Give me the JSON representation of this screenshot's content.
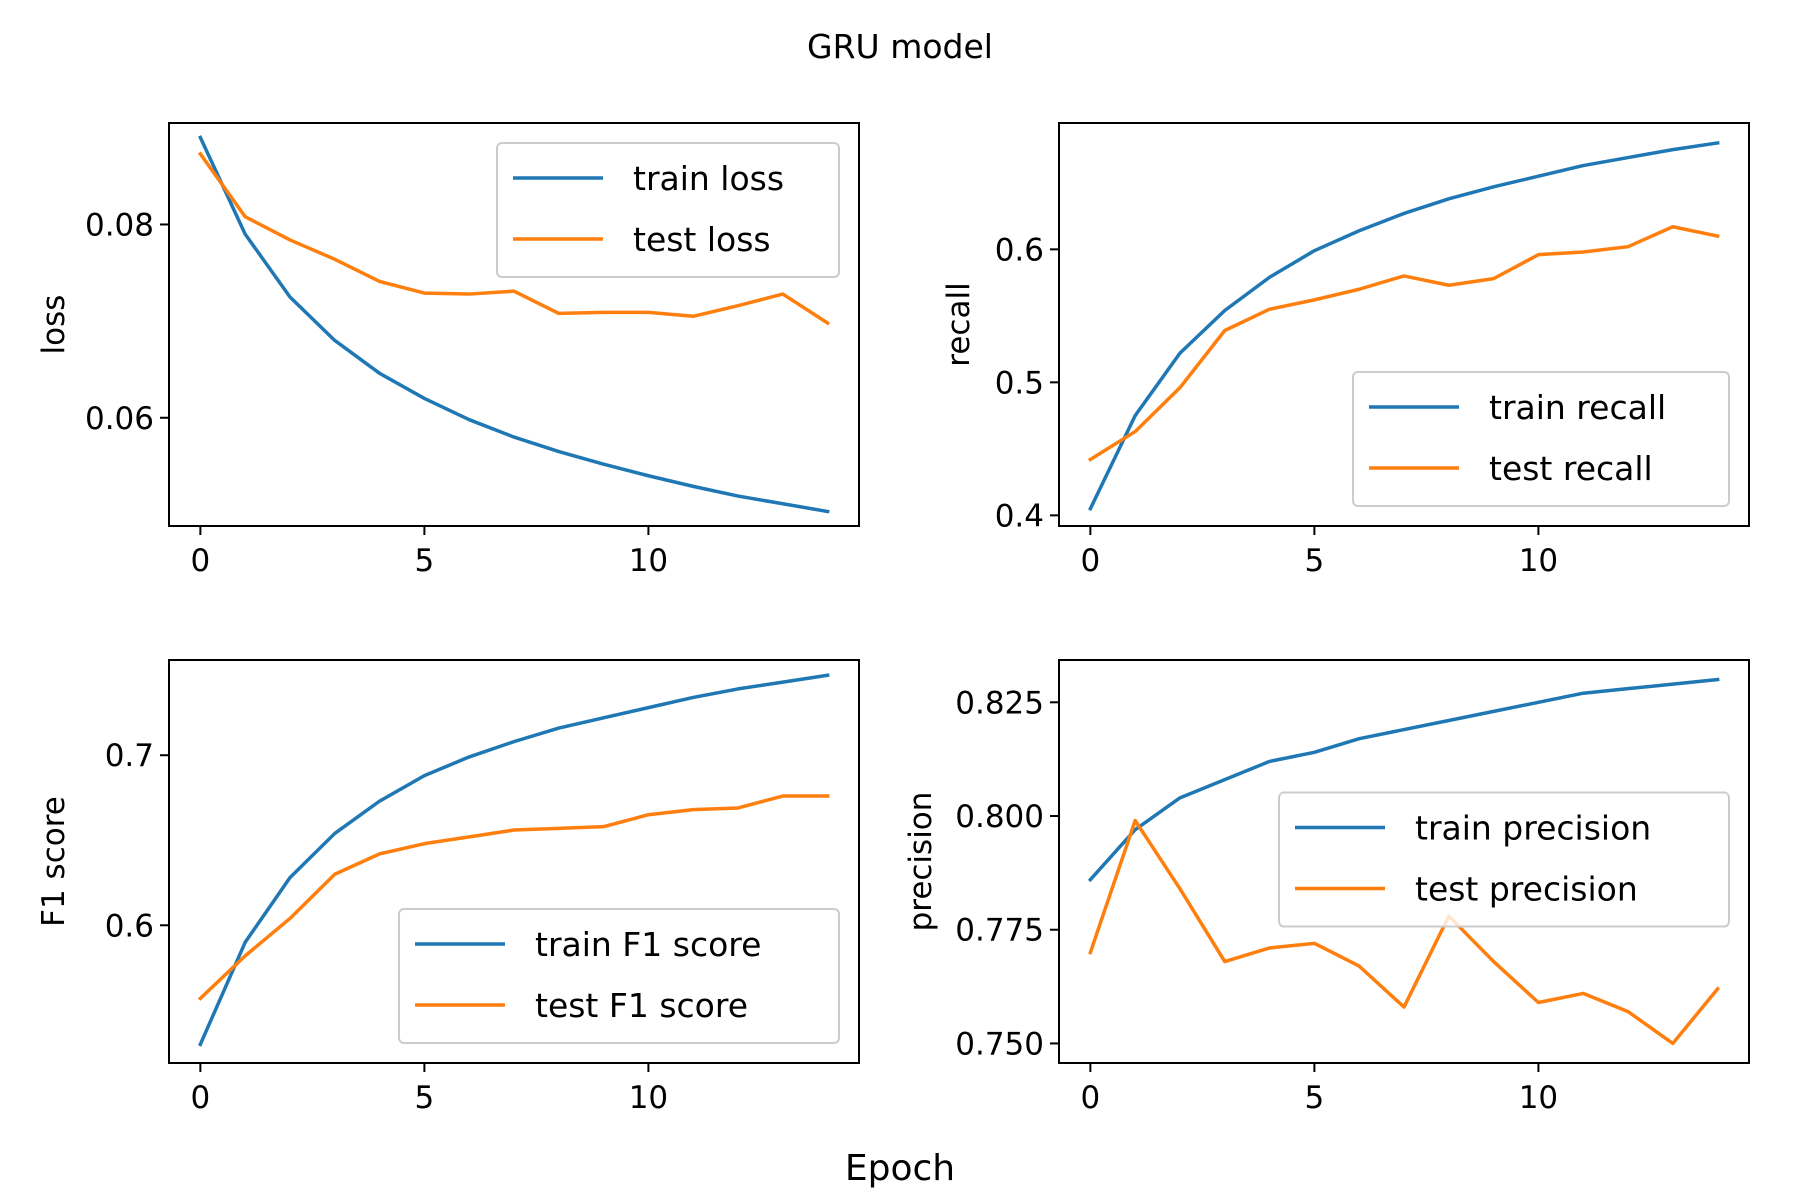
{
  "figure": {
    "title": "GRU model",
    "xlabel": "Epoch"
  },
  "colors": {
    "train": "#1f77b4",
    "test": "#ff7f0e",
    "axis": "#000000",
    "legend_border": "#cccccc"
  },
  "chart_data": [
    {
      "type": "line",
      "ylabel": "loss",
      "xlim": [
        -0.7,
        14.7
      ],
      "ylim": [
        0.0488,
        0.0905
      ],
      "xticks": [
        0,
        5,
        10
      ],
      "yticks": [
        0.06,
        0.08
      ],
      "ytick_labels": [
        "0.06",
        "0.08"
      ],
      "legend_position": "upper right",
      "x": [
        0,
        1,
        2,
        3,
        4,
        5,
        6,
        7,
        8,
        9,
        10,
        11,
        12,
        13,
        14
      ],
      "series": [
        {
          "name": "train loss",
          "color": "#1f77b4",
          "values": [
            0.089,
            0.079,
            0.0725,
            0.068,
            0.0646,
            0.062,
            0.0598,
            0.058,
            0.0565,
            0.0552,
            0.054,
            0.0529,
            0.0519,
            0.0511,
            0.0503
          ]
        },
        {
          "name": "test loss",
          "color": "#ff7f0e",
          "values": [
            0.0873,
            0.0808,
            0.0784,
            0.0764,
            0.0741,
            0.0729,
            0.0728,
            0.0731,
            0.0708,
            0.0709,
            0.0709,
            0.0705,
            0.0716,
            0.0728,
            0.0698
          ]
        }
      ]
    },
    {
      "type": "line",
      "ylabel": "recall",
      "xlim": [
        -0.7,
        14.7
      ],
      "ylim": [
        0.392,
        0.695
      ],
      "xticks": [
        0,
        5,
        10
      ],
      "yticks": [
        0.4,
        0.5,
        0.6
      ],
      "ytick_labels": [
        "0.4",
        "0.5",
        "0.6"
      ],
      "legend_position": "lower right",
      "x": [
        0,
        1,
        2,
        3,
        4,
        5,
        6,
        7,
        8,
        9,
        10,
        11,
        12,
        13,
        14
      ],
      "series": [
        {
          "name": "train recall",
          "color": "#1f77b4",
          "values": [
            0.405,
            0.475,
            0.522,
            0.554,
            0.579,
            0.599,
            0.614,
            0.627,
            0.638,
            0.647,
            0.655,
            0.663,
            0.669,
            0.675,
            0.68
          ]
        },
        {
          "name": "test recall",
          "color": "#ff7f0e",
          "values": [
            0.442,
            0.463,
            0.496,
            0.539,
            0.555,
            0.562,
            0.57,
            0.58,
            0.573,
            0.578,
            0.596,
            0.598,
            0.602,
            0.617,
            0.61
          ]
        }
      ]
    },
    {
      "type": "line",
      "ylabel": "F1 score",
      "xlim": [
        -0.7,
        14.7
      ],
      "ylim": [
        0.519,
        0.756
      ],
      "xticks": [
        0,
        5,
        10
      ],
      "yticks": [
        0.6,
        0.7
      ],
      "ytick_labels": [
        "0.6",
        "0.7"
      ],
      "legend_position": "lower right",
      "x": [
        0,
        1,
        2,
        3,
        4,
        5,
        6,
        7,
        8,
        9,
        10,
        11,
        12,
        13,
        14
      ],
      "series": [
        {
          "name": "train F1 score",
          "color": "#1f77b4",
          "values": [
            0.53,
            0.59,
            0.628,
            0.654,
            0.673,
            0.688,
            0.699,
            0.708,
            0.716,
            0.722,
            0.728,
            0.734,
            0.739,
            0.743,
            0.747
          ]
        },
        {
          "name": "test F1 score",
          "color": "#ff7f0e",
          "values": [
            0.557,
            0.582,
            0.604,
            0.63,
            0.642,
            0.648,
            0.652,
            0.656,
            0.657,
            0.658,
            0.665,
            0.668,
            0.669,
            0.676,
            0.676
          ]
        }
      ]
    },
    {
      "type": "line",
      "ylabel": "precision",
      "xlim": [
        -0.7,
        14.7
      ],
      "ylim": [
        0.7457,
        0.8343
      ],
      "xticks": [
        0,
        5,
        10
      ],
      "yticks": [
        0.75,
        0.775,
        0.8,
        0.825
      ],
      "ytick_labels": [
        "0.750",
        "0.775",
        "0.800",
        "0.825"
      ],
      "legend_position": "center right",
      "x": [
        0,
        1,
        2,
        3,
        4,
        5,
        6,
        7,
        8,
        9,
        10,
        11,
        12,
        13,
        14
      ],
      "series": [
        {
          "name": "train precision",
          "color": "#1f77b4",
          "values": [
            0.786,
            0.797,
            0.804,
            0.808,
            0.812,
            0.814,
            0.817,
            0.819,
            0.821,
            0.823,
            0.825,
            0.827,
            0.828,
            0.829,
            0.83
          ]
        },
        {
          "name": "test precision",
          "color": "#ff7f0e",
          "values": [
            0.77,
            0.799,
            0.784,
            0.768,
            0.771,
            0.772,
            0.767,
            0.758,
            0.778,
            0.768,
            0.759,
            0.761,
            0.757,
            0.75,
            0.762
          ]
        }
      ]
    }
  ]
}
